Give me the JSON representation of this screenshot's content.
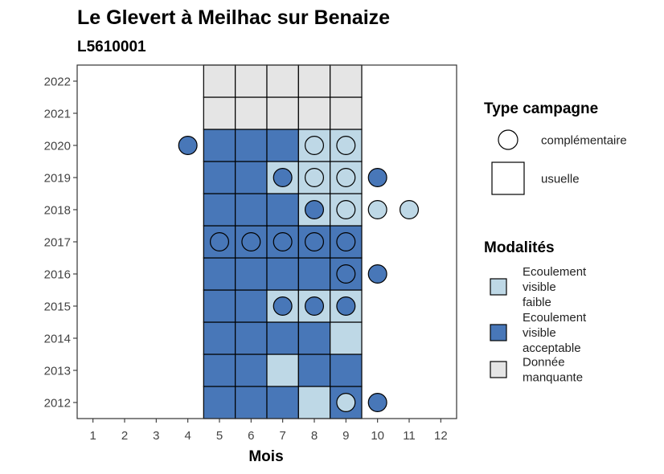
{
  "chart_data": {
    "type": "heatmap",
    "title": "Le Glevert à Meilhac sur Benaize",
    "subtitle": "L5610001",
    "xlabel": "Mois",
    "ylabel": "",
    "x_ticks": [
      1,
      2,
      3,
      4,
      5,
      6,
      7,
      8,
      9,
      10,
      11,
      12
    ],
    "y_ticks": [
      2012,
      2013,
      2014,
      2015,
      2016,
      2017,
      2018,
      2019,
      2020,
      2021,
      2022
    ],
    "xlim": [
      0.5,
      12.5
    ],
    "ylim": [
      2011.5,
      2022.5
    ],
    "grid": false,
    "colors": {
      "faible": "#bed8e6",
      "acceptable": "#4877b8",
      "manquante": "#e5e5e5"
    },
    "tiles": [
      {
        "year": 2012,
        "month": 5,
        "mod": "acceptable"
      },
      {
        "year": 2012,
        "month": 6,
        "mod": "acceptable"
      },
      {
        "year": 2012,
        "month": 7,
        "mod": "acceptable"
      },
      {
        "year": 2012,
        "month": 8,
        "mod": "faible"
      },
      {
        "year": 2012,
        "month": 9,
        "mod": "acceptable"
      },
      {
        "year": 2013,
        "month": 5,
        "mod": "acceptable"
      },
      {
        "year": 2013,
        "month": 6,
        "mod": "acceptable"
      },
      {
        "year": 2013,
        "month": 7,
        "mod": "faible"
      },
      {
        "year": 2013,
        "month": 8,
        "mod": "acceptable"
      },
      {
        "year": 2013,
        "month": 9,
        "mod": "acceptable"
      },
      {
        "year": 2014,
        "month": 5,
        "mod": "acceptable"
      },
      {
        "year": 2014,
        "month": 6,
        "mod": "acceptable"
      },
      {
        "year": 2014,
        "month": 7,
        "mod": "acceptable"
      },
      {
        "year": 2014,
        "month": 8,
        "mod": "acceptable"
      },
      {
        "year": 2014,
        "month": 9,
        "mod": "faible"
      },
      {
        "year": 2015,
        "month": 5,
        "mod": "acceptable"
      },
      {
        "year": 2015,
        "month": 6,
        "mod": "acceptable"
      },
      {
        "year": 2015,
        "month": 7,
        "mod": "faible"
      },
      {
        "year": 2015,
        "month": 8,
        "mod": "faible"
      },
      {
        "year": 2015,
        "month": 9,
        "mod": "faible"
      },
      {
        "year": 2016,
        "month": 5,
        "mod": "acceptable"
      },
      {
        "year": 2016,
        "month": 6,
        "mod": "acceptable"
      },
      {
        "year": 2016,
        "month": 7,
        "mod": "acceptable"
      },
      {
        "year": 2016,
        "month": 8,
        "mod": "acceptable"
      },
      {
        "year": 2016,
        "month": 9,
        "mod": "acceptable"
      },
      {
        "year": 2017,
        "month": 5,
        "mod": "acceptable"
      },
      {
        "year": 2017,
        "month": 6,
        "mod": "acceptable"
      },
      {
        "year": 2017,
        "month": 7,
        "mod": "acceptable"
      },
      {
        "year": 2017,
        "month": 8,
        "mod": "acceptable"
      },
      {
        "year": 2017,
        "month": 9,
        "mod": "acceptable"
      },
      {
        "year": 2018,
        "month": 5,
        "mod": "acceptable"
      },
      {
        "year": 2018,
        "month": 6,
        "mod": "acceptable"
      },
      {
        "year": 2018,
        "month": 7,
        "mod": "acceptable"
      },
      {
        "year": 2018,
        "month": 8,
        "mod": "faible"
      },
      {
        "year": 2018,
        "month": 9,
        "mod": "faible"
      },
      {
        "year": 2019,
        "month": 5,
        "mod": "acceptable"
      },
      {
        "year": 2019,
        "month": 6,
        "mod": "acceptable"
      },
      {
        "year": 2019,
        "month": 7,
        "mod": "faible"
      },
      {
        "year": 2019,
        "month": 8,
        "mod": "faible"
      },
      {
        "year": 2019,
        "month": 9,
        "mod": "faible"
      },
      {
        "year": 2020,
        "month": 5,
        "mod": "acceptable"
      },
      {
        "year": 2020,
        "month": 6,
        "mod": "acceptable"
      },
      {
        "year": 2020,
        "month": 7,
        "mod": "acceptable"
      },
      {
        "year": 2020,
        "month": 8,
        "mod": "faible"
      },
      {
        "year": 2020,
        "month": 9,
        "mod": "faible"
      },
      {
        "year": 2021,
        "month": 5,
        "mod": "manquante"
      },
      {
        "year": 2021,
        "month": 6,
        "mod": "manquante"
      },
      {
        "year": 2021,
        "month": 7,
        "mod": "manquante"
      },
      {
        "year": 2021,
        "month": 8,
        "mod": "manquante"
      },
      {
        "year": 2021,
        "month": 9,
        "mod": "manquante"
      },
      {
        "year": 2022,
        "month": 5,
        "mod": "manquante"
      },
      {
        "year": 2022,
        "month": 6,
        "mod": "manquante"
      },
      {
        "year": 2022,
        "month": 7,
        "mod": "manquante"
      },
      {
        "year": 2022,
        "month": 8,
        "mod": "manquante"
      },
      {
        "year": 2022,
        "month": 9,
        "mod": "manquante"
      }
    ],
    "points": [
      {
        "year": 2012,
        "month": 9,
        "mod": "faible"
      },
      {
        "year": 2012,
        "month": 10,
        "mod": "acceptable"
      },
      {
        "year": 2015,
        "month": 7,
        "mod": "acceptable"
      },
      {
        "year": 2015,
        "month": 8,
        "mod": "acceptable"
      },
      {
        "year": 2015,
        "month": 9,
        "mod": "acceptable"
      },
      {
        "year": 2016,
        "month": 9,
        "mod": "acceptable"
      },
      {
        "year": 2016,
        "month": 10,
        "mod": "acceptable"
      },
      {
        "year": 2017,
        "month": 5,
        "mod": "acceptable"
      },
      {
        "year": 2017,
        "month": 6,
        "mod": "acceptable"
      },
      {
        "year": 2017,
        "month": 7,
        "mod": "acceptable"
      },
      {
        "year": 2017,
        "month": 8,
        "mod": "acceptable"
      },
      {
        "year": 2017,
        "month": 9,
        "mod": "acceptable"
      },
      {
        "year": 2018,
        "month": 8,
        "mod": "acceptable"
      },
      {
        "year": 2018,
        "month": 9,
        "mod": "faible"
      },
      {
        "year": 2018,
        "month": 10,
        "mod": "faible"
      },
      {
        "year": 2018,
        "month": 11,
        "mod": "faible"
      },
      {
        "year": 2019,
        "month": 7,
        "mod": "acceptable"
      },
      {
        "year": 2019,
        "month": 8,
        "mod": "faible"
      },
      {
        "year": 2019,
        "month": 9,
        "mod": "faible"
      },
      {
        "year": 2019,
        "month": 10,
        "mod": "acceptable"
      },
      {
        "year": 2020,
        "month": 4,
        "mod": "acceptable"
      },
      {
        "year": 2020,
        "month": 8,
        "mod": "faible"
      },
      {
        "year": 2020,
        "month": 9,
        "mod": "faible"
      }
    ],
    "legend": {
      "placement": "right",
      "type_title": "Type campagne",
      "type_items": [
        {
          "shape": "circle",
          "label": "complémentaire"
        },
        {
          "shape": "square",
          "label": "usuelle"
        }
      ],
      "mod_title": "Modalités",
      "mod_items": [
        {
          "key": "faible",
          "lines": [
            "Ecoulement",
            "visible",
            "faible"
          ]
        },
        {
          "key": "acceptable",
          "lines": [
            "Ecoulement",
            "visible",
            "acceptable"
          ]
        },
        {
          "key": "manquante",
          "lines": [
            "Donnée",
            "manquante"
          ]
        }
      ]
    }
  }
}
